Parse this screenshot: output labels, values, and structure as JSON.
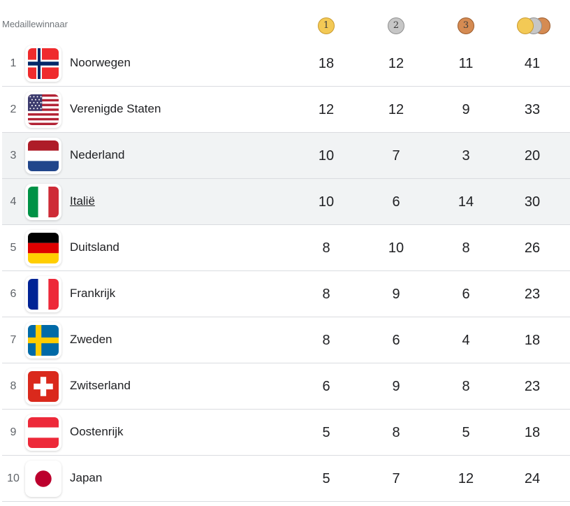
{
  "header": {
    "title": "Medaillewinnaar"
  },
  "medals": {
    "gold_label": "1",
    "silver_label": "2",
    "bronze_label": "3",
    "total_icon": "combined-medals-icon"
  },
  "rows": [
    {
      "rank": "1",
      "country": "Noorwegen",
      "gold": "18",
      "silver": "12",
      "bronze": "11",
      "total": "41",
      "flag": "norway-flag-icon"
    },
    {
      "rank": "2",
      "country": "Verenigde Staten",
      "gold": "12",
      "silver": "12",
      "bronze": "9",
      "total": "33",
      "flag": "usa-flag-icon"
    },
    {
      "rank": "3",
      "country": "Nederland",
      "gold": "10",
      "silver": "7",
      "bronze": "3",
      "total": "20",
      "flag": "netherlands-flag-icon"
    },
    {
      "rank": "4",
      "country": "Italië",
      "gold": "10",
      "silver": "6",
      "bronze": "14",
      "total": "30",
      "flag": "italy-flag-icon"
    },
    {
      "rank": "5",
      "country": "Duitsland",
      "gold": "8",
      "silver": "10",
      "bronze": "8",
      "total": "26",
      "flag": "germany-flag-icon"
    },
    {
      "rank": "6",
      "country": "Frankrijk",
      "gold": "8",
      "silver": "9",
      "bronze": "6",
      "total": "23",
      "flag": "france-flag-icon"
    },
    {
      "rank": "7",
      "country": "Zweden",
      "gold": "8",
      "silver": "6",
      "bronze": "4",
      "total": "18",
      "flag": "sweden-flag-icon"
    },
    {
      "rank": "8",
      "country": "Zwitserland",
      "gold": "6",
      "silver": "9",
      "bronze": "8",
      "total": "23",
      "flag": "switzerland-flag-icon"
    },
    {
      "rank": "9",
      "country": "Oostenrijk",
      "gold": "5",
      "silver": "8",
      "bronze": "5",
      "total": "18",
      "flag": "austria-flag-icon"
    },
    {
      "rank": "10",
      "country": "Japan",
      "gold": "5",
      "silver": "7",
      "bronze": "12",
      "total": "24",
      "flag": "japan-flag-icon"
    }
  ],
  "colors": {
    "gold": "#f3c955",
    "silver": "#c6c6c6",
    "bronze": "#d58b52",
    "row_highlight": "#f1f3f4",
    "divider": "#dadce0"
  }
}
